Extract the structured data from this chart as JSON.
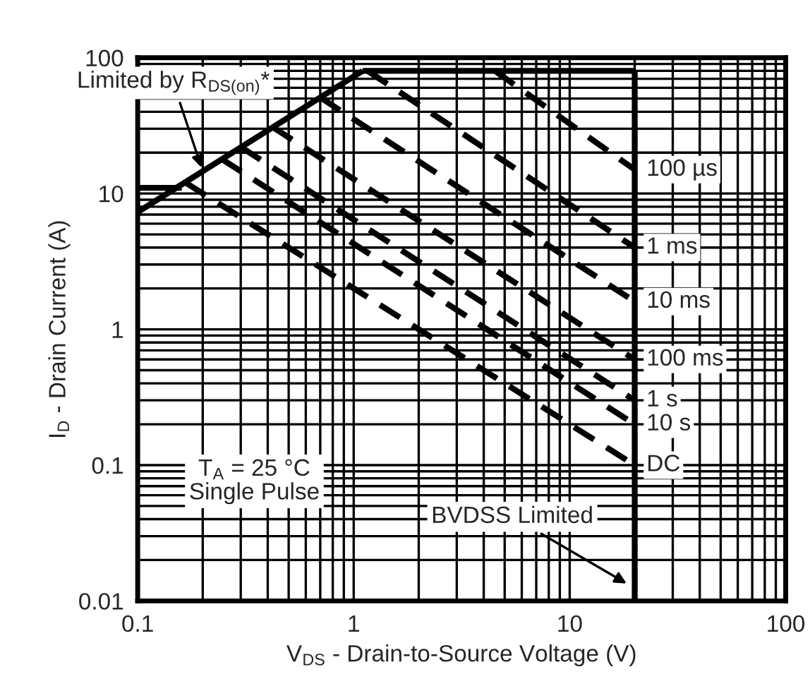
{
  "chart_data": {
    "type": "line",
    "xlabel": "V$_{DS}$ - Drain-to-Source Voltage (V)",
    "ylabel": "I$_{D}$ - Drain Current (A)",
    "log": "xy",
    "xlim": [
      0.1,
      100
    ],
    "ylim": [
      0.01,
      100
    ],
    "xticks": [
      0.1,
      1,
      10,
      100
    ],
    "yticks": [
      0.01,
      0.1,
      1,
      10,
      100
    ],
    "grid": true,
    "legend": false,
    "marker": "none",
    "series": [
      {
        "color": "#000000",
        "line_style": "solid",
        "x": [
          0.1,
          1.1
        ],
        "values": [
          7.3,
          80
        ]
      },
      {
        "color": "#000000",
        "line_style": "solid",
        "x": [
          1.1,
          20
        ],
        "values": [
          80,
          80
        ]
      },
      {
        "color": "#000000",
        "line_style": "solid",
        "x": [
          0.1,
          0.16
        ],
        "values": [
          11,
          11
        ]
      },
      {
        "color": "#000000",
        "line_style": "solid",
        "x": [
          20,
          20
        ],
        "values": [
          0.01,
          80
        ]
      },
      {
        "name": "100 µs",
        "color": "#000000",
        "line_style": "dashed",
        "x": [
          4.5,
          20
        ],
        "values": [
          80,
          15
        ]
      },
      {
        "name": "1 ms",
        "color": "#000000",
        "line_style": "dashed",
        "x": [
          1.16,
          20
        ],
        "values": [
          80,
          4
        ]
      },
      {
        "name": "10 ms",
        "color": "#000000",
        "line_style": "dashed",
        "x": [
          0.7,
          20
        ],
        "values": [
          51,
          1.6
        ]
      },
      {
        "name": "100 ms",
        "color": "#000000",
        "line_style": "dashed",
        "x": [
          0.42,
          20
        ],
        "values": [
          31,
          0.6
        ]
      },
      {
        "name": "1 s",
        "color": "#000000",
        "line_style": "dashed",
        "x": [
          0.3,
          20
        ],
        "values": [
          22,
          0.3
        ]
      },
      {
        "name": "10 s",
        "color": "#000000",
        "line_style": "dashed",
        "x": [
          0.244,
          20
        ],
        "values": [
          18,
          0.2
        ]
      },
      {
        "name": "DC",
        "color": "#000000",
        "line_style": "dashed",
        "x": [
          0.167,
          20
        ],
        "values": [
          12,
          0.1
        ]
      }
    ],
    "annotations": [
      {
        "text": "Limited by R$_{DS(on)}$*",
        "x": 0.2,
        "y": 14.6
      },
      {
        "text": "BVDSS Limited",
        "x": 19,
        "y": 0.013
      },
      "T$_{A}$ = 25 °C\nSingle Pulse"
    ]
  }
}
